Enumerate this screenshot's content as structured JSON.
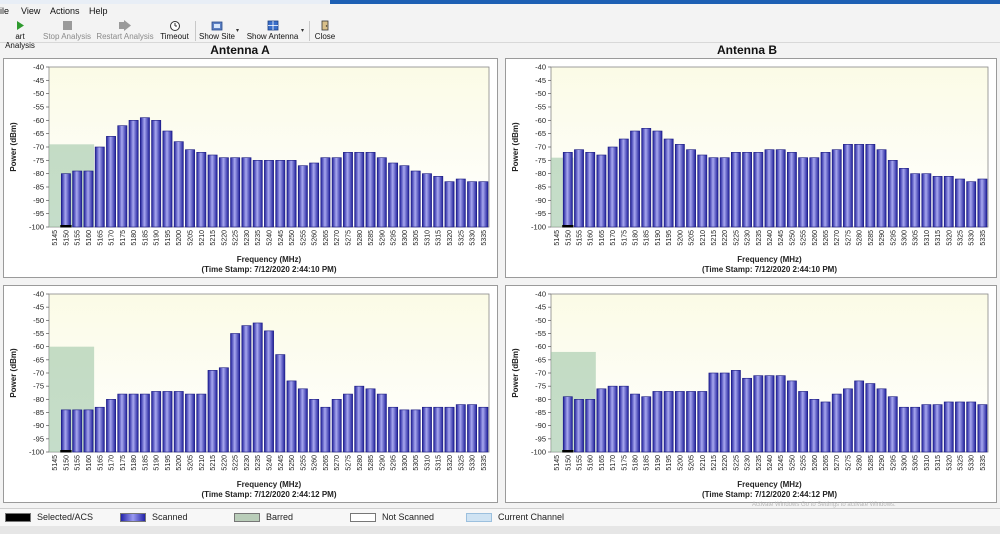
{
  "menu": [
    "ile",
    "View",
    "Actions",
    "Help"
  ],
  "toolbar": {
    "start_label": "art Analysis",
    "stop_label": "Stop Analysis",
    "restart_label": "Restart Analysis",
    "timeout_label": "Timeout",
    "show_site_label": "Show Site",
    "show_antenna_label": "Show Antenna",
    "close_label": "Close"
  },
  "titles": {
    "antenna_a": "Antenna A",
    "antenna_b": "Antenna B"
  },
  "colors": {
    "bar": "#3434c8",
    "bar_light": "#a8a8f0",
    "barred": "#9fc7a6",
    "selected": "#000000",
    "plot_top": "#fbfbe6",
    "plot_bottom": "#ffffff"
  },
  "chart_data": [
    {
      "id": "antenna-a-top",
      "type": "bar",
      "ylabel": "Power (dBm)",
      "xlabel": "Frequency (MHz)",
      "timestamp": "(Time Stamp: 7/12/2020 2:44:10 PM)",
      "yticks": [
        "-40",
        "-45",
        "-50",
        "-55",
        "-60",
        "-65",
        "-70",
        "-75",
        "-80",
        "-85",
        "-90",
        "-95",
        "-100"
      ],
      "ylim": [
        -100,
        -40
      ],
      "categories": [
        "5145",
        "5150",
        "5155",
        "5160",
        "5165",
        "5170",
        "5175",
        "5180",
        "5185",
        "5190",
        "5195",
        "5200",
        "5205",
        "5210",
        "5215",
        "5220",
        "5225",
        "5230",
        "5235",
        "5240",
        "5245",
        "5250",
        "5255",
        "5260",
        "5265",
        "5270",
        "5275",
        "5280",
        "5285",
        "5290",
        "5295",
        "5300",
        "5305",
        "5310",
        "5315",
        "5320",
        "5325",
        "5330",
        "5335"
      ],
      "values": [
        null,
        -80,
        -79,
        -79,
        -70,
        -66,
        -62,
        -60,
        -59,
        -60,
        -64,
        -68,
        -71,
        -72,
        -73,
        -74,
        -74,
        -74,
        -75,
        -75,
        -75,
        -75,
        -77,
        -76,
        -74,
        -74,
        -72,
        -72,
        -72,
        -74,
        -76,
        -77,
        -79,
        -80,
        -81,
        -83,
        -82,
        -83,
        -83
      ],
      "barred_range": [
        "5145",
        "5160"
      ],
      "barred_level": -69,
      "selected_channel": "5150"
    },
    {
      "id": "antenna-b-top",
      "type": "bar",
      "ylabel": "Power (dBm)",
      "xlabel": "Frequency (MHz)",
      "timestamp": "(Time Stamp: 7/12/2020 2:44:10 PM)",
      "yticks": [
        "-40",
        "-45",
        "-50",
        "-55",
        "-60",
        "-65",
        "-70",
        "-75",
        "-80",
        "-85",
        "-90",
        "-95",
        "-100"
      ],
      "ylim": [
        -100,
        -40
      ],
      "categories": [
        "5145",
        "5150",
        "5155",
        "5160",
        "5165",
        "5170",
        "5175",
        "5180",
        "5185",
        "5190",
        "5195",
        "5200",
        "5205",
        "5210",
        "5215",
        "5220",
        "5225",
        "5230",
        "5235",
        "5240",
        "5245",
        "5250",
        "5255",
        "5260",
        "5265",
        "5270",
        "5275",
        "5280",
        "5285",
        "5290",
        "5295",
        "5300",
        "5305",
        "5310",
        "5315",
        "5320",
        "5325",
        "5330",
        "5335"
      ],
      "values": [
        null,
        -72,
        -71,
        -72,
        -73,
        -70,
        -67,
        -64,
        -63,
        -64,
        -67,
        -69,
        -71,
        -73,
        -74,
        -74,
        -72,
        -72,
        -72,
        -71,
        -71,
        -72,
        -74,
        -74,
        -72,
        -71,
        -69,
        -69,
        -69,
        -71,
        -75,
        -78,
        -80,
        -80,
        -81,
        -81,
        -82,
        -83,
        -82
      ],
      "barred_range": [
        "5145",
        "5150"
      ],
      "barred_level": -74,
      "selected_channel": "5150"
    },
    {
      "id": "antenna-a-bottom",
      "type": "bar",
      "ylabel": "Power (dBm)",
      "xlabel": "Frequency (MHz)",
      "timestamp": "(Time Stamp: 7/12/2020 2:44:12 PM)",
      "yticks": [
        "-40",
        "-45",
        "-50",
        "-55",
        "-60",
        "-65",
        "-70",
        "-75",
        "-80",
        "-85",
        "-90",
        "-95",
        "-100"
      ],
      "ylim": [
        -100,
        -40
      ],
      "categories": [
        "5145",
        "5150",
        "5155",
        "5160",
        "5165",
        "5170",
        "5175",
        "5180",
        "5185",
        "5190",
        "5195",
        "5200",
        "5205",
        "5210",
        "5215",
        "5220",
        "5225",
        "5230",
        "5235",
        "5240",
        "5245",
        "5250",
        "5255",
        "5260",
        "5265",
        "5270",
        "5275",
        "5280",
        "5285",
        "5290",
        "5295",
        "5300",
        "5305",
        "5310",
        "5315",
        "5320",
        "5325",
        "5330",
        "5335"
      ],
      "values": [
        null,
        -84,
        -84,
        -84,
        -83,
        -80,
        -78,
        -78,
        -78,
        -77,
        -77,
        -77,
        -78,
        -78,
        -69,
        -68,
        -55,
        -52,
        -51,
        -54,
        -63,
        -73,
        -76,
        -80,
        -83,
        -80,
        -78,
        -75,
        -76,
        -78,
        -83,
        -84,
        -84,
        -83,
        -83,
        -83,
        -82,
        -82,
        -83
      ],
      "barred_range": [
        "5145",
        "5160"
      ],
      "barred_level": -60,
      "selected_channel": "5150"
    },
    {
      "id": "antenna-b-bottom",
      "type": "bar",
      "ylabel": "Power (dBm)",
      "xlabel": "Frequency (MHz)",
      "timestamp": "(Time Stamp: 7/12/2020 2:44:12 PM)",
      "yticks": [
        "-40",
        "-45",
        "-50",
        "-55",
        "-60",
        "-65",
        "-70",
        "-75",
        "-80",
        "-85",
        "-90",
        "-95",
        "-100"
      ],
      "ylim": [
        -100,
        -40
      ],
      "categories": [
        "5145",
        "5150",
        "5155",
        "5160",
        "5165",
        "5170",
        "5175",
        "5180",
        "5185",
        "5190",
        "5195",
        "5200",
        "5205",
        "5210",
        "5215",
        "5220",
        "5225",
        "5230",
        "5235",
        "5240",
        "5245",
        "5250",
        "5255",
        "5260",
        "5265",
        "5270",
        "5275",
        "5280",
        "5285",
        "5290",
        "5295",
        "5300",
        "5305",
        "5310",
        "5315",
        "5320",
        "5325",
        "5330",
        "5335"
      ],
      "values": [
        null,
        -79,
        -80,
        -80,
        -76,
        -75,
        -75,
        -78,
        -79,
        -77,
        -77,
        -77,
        -77,
        -77,
        -70,
        -70,
        -69,
        -72,
        -71,
        -71,
        -71,
        -73,
        -77,
        -80,
        -81,
        -78,
        -76,
        -73,
        -74,
        -76,
        -79,
        -83,
        -83,
        -82,
        -82,
        -81,
        -81,
        -81,
        -82
      ],
      "barred_range": [
        "5145",
        "5160"
      ],
      "barred_level": -62,
      "selected_channel": "5150"
    }
  ],
  "legend": [
    {
      "label": "Selected/ACS",
      "swatch": "#000000"
    },
    {
      "label": "Scanned",
      "swatch": "#3434c8"
    },
    {
      "label": "Barred",
      "swatch": "#b9cdb9"
    },
    {
      "label": "Not Scanned",
      "swatch": "#ffffff"
    },
    {
      "label": "Current Channel",
      "swatch": "#cfe3f3"
    }
  ],
  "watermark": "Activate Windows Go to Settings to activate Windows."
}
